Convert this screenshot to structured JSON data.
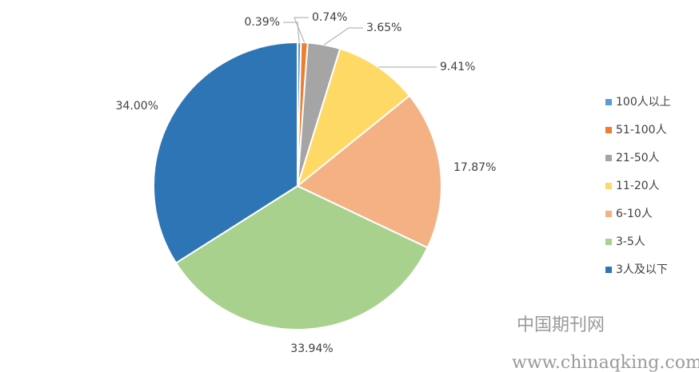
{
  "chart_data": {
    "type": "pie",
    "categories": [
      "100人以上",
      "51-100人",
      "21-50人",
      "11-20人",
      "6-10人",
      "3-5人",
      "3人及以下"
    ],
    "values": [
      0.39,
      0.74,
      3.65,
      9.41,
      17.87,
      33.94,
      34.0
    ],
    "value_labels": [
      "0.39%",
      "0.74%",
      "3.65%",
      "9.41%",
      "17.87%",
      "33.94%",
      "34.00%"
    ],
    "colors": [
      "#5b9bd5",
      "#ed7d31",
      "#a5a5a5",
      "#ffd966",
      "#f4b183",
      "#a9d18e",
      "#2e75b6"
    ],
    "legend": "right"
  },
  "watermark": {
    "title": "中国期刊网",
    "url": "www.chinaqking.com"
  }
}
